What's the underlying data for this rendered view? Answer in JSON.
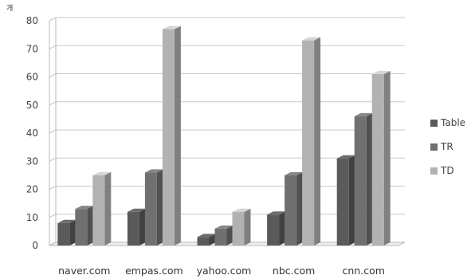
{
  "chart_data": {
    "type": "bar",
    "unit_label": "개",
    "categories": [
      "naver.com",
      "empas.com",
      "yahoo.com",
      "nbc.com",
      "cnn.com"
    ],
    "series": [
      {
        "name": "Table",
        "color": "#5a5a5a",
        "values": [
          8,
          12,
          3,
          11,
          31
        ]
      },
      {
        "name": "TR",
        "color": "#707070",
        "values": [
          13,
          26,
          6,
          25,
          46
        ]
      },
      {
        "name": "TD",
        "color": "#b2b2b2",
        "values": [
          25,
          77,
          12,
          73,
          61
        ]
      }
    ],
    "ylim": [
      0,
      80
    ],
    "yticks": [
      0,
      10,
      20,
      30,
      40,
      50,
      60,
      70,
      80
    ],
    "grid": true,
    "legend_position": "right",
    "title": "",
    "xlabel": "",
    "ylabel": ""
  }
}
